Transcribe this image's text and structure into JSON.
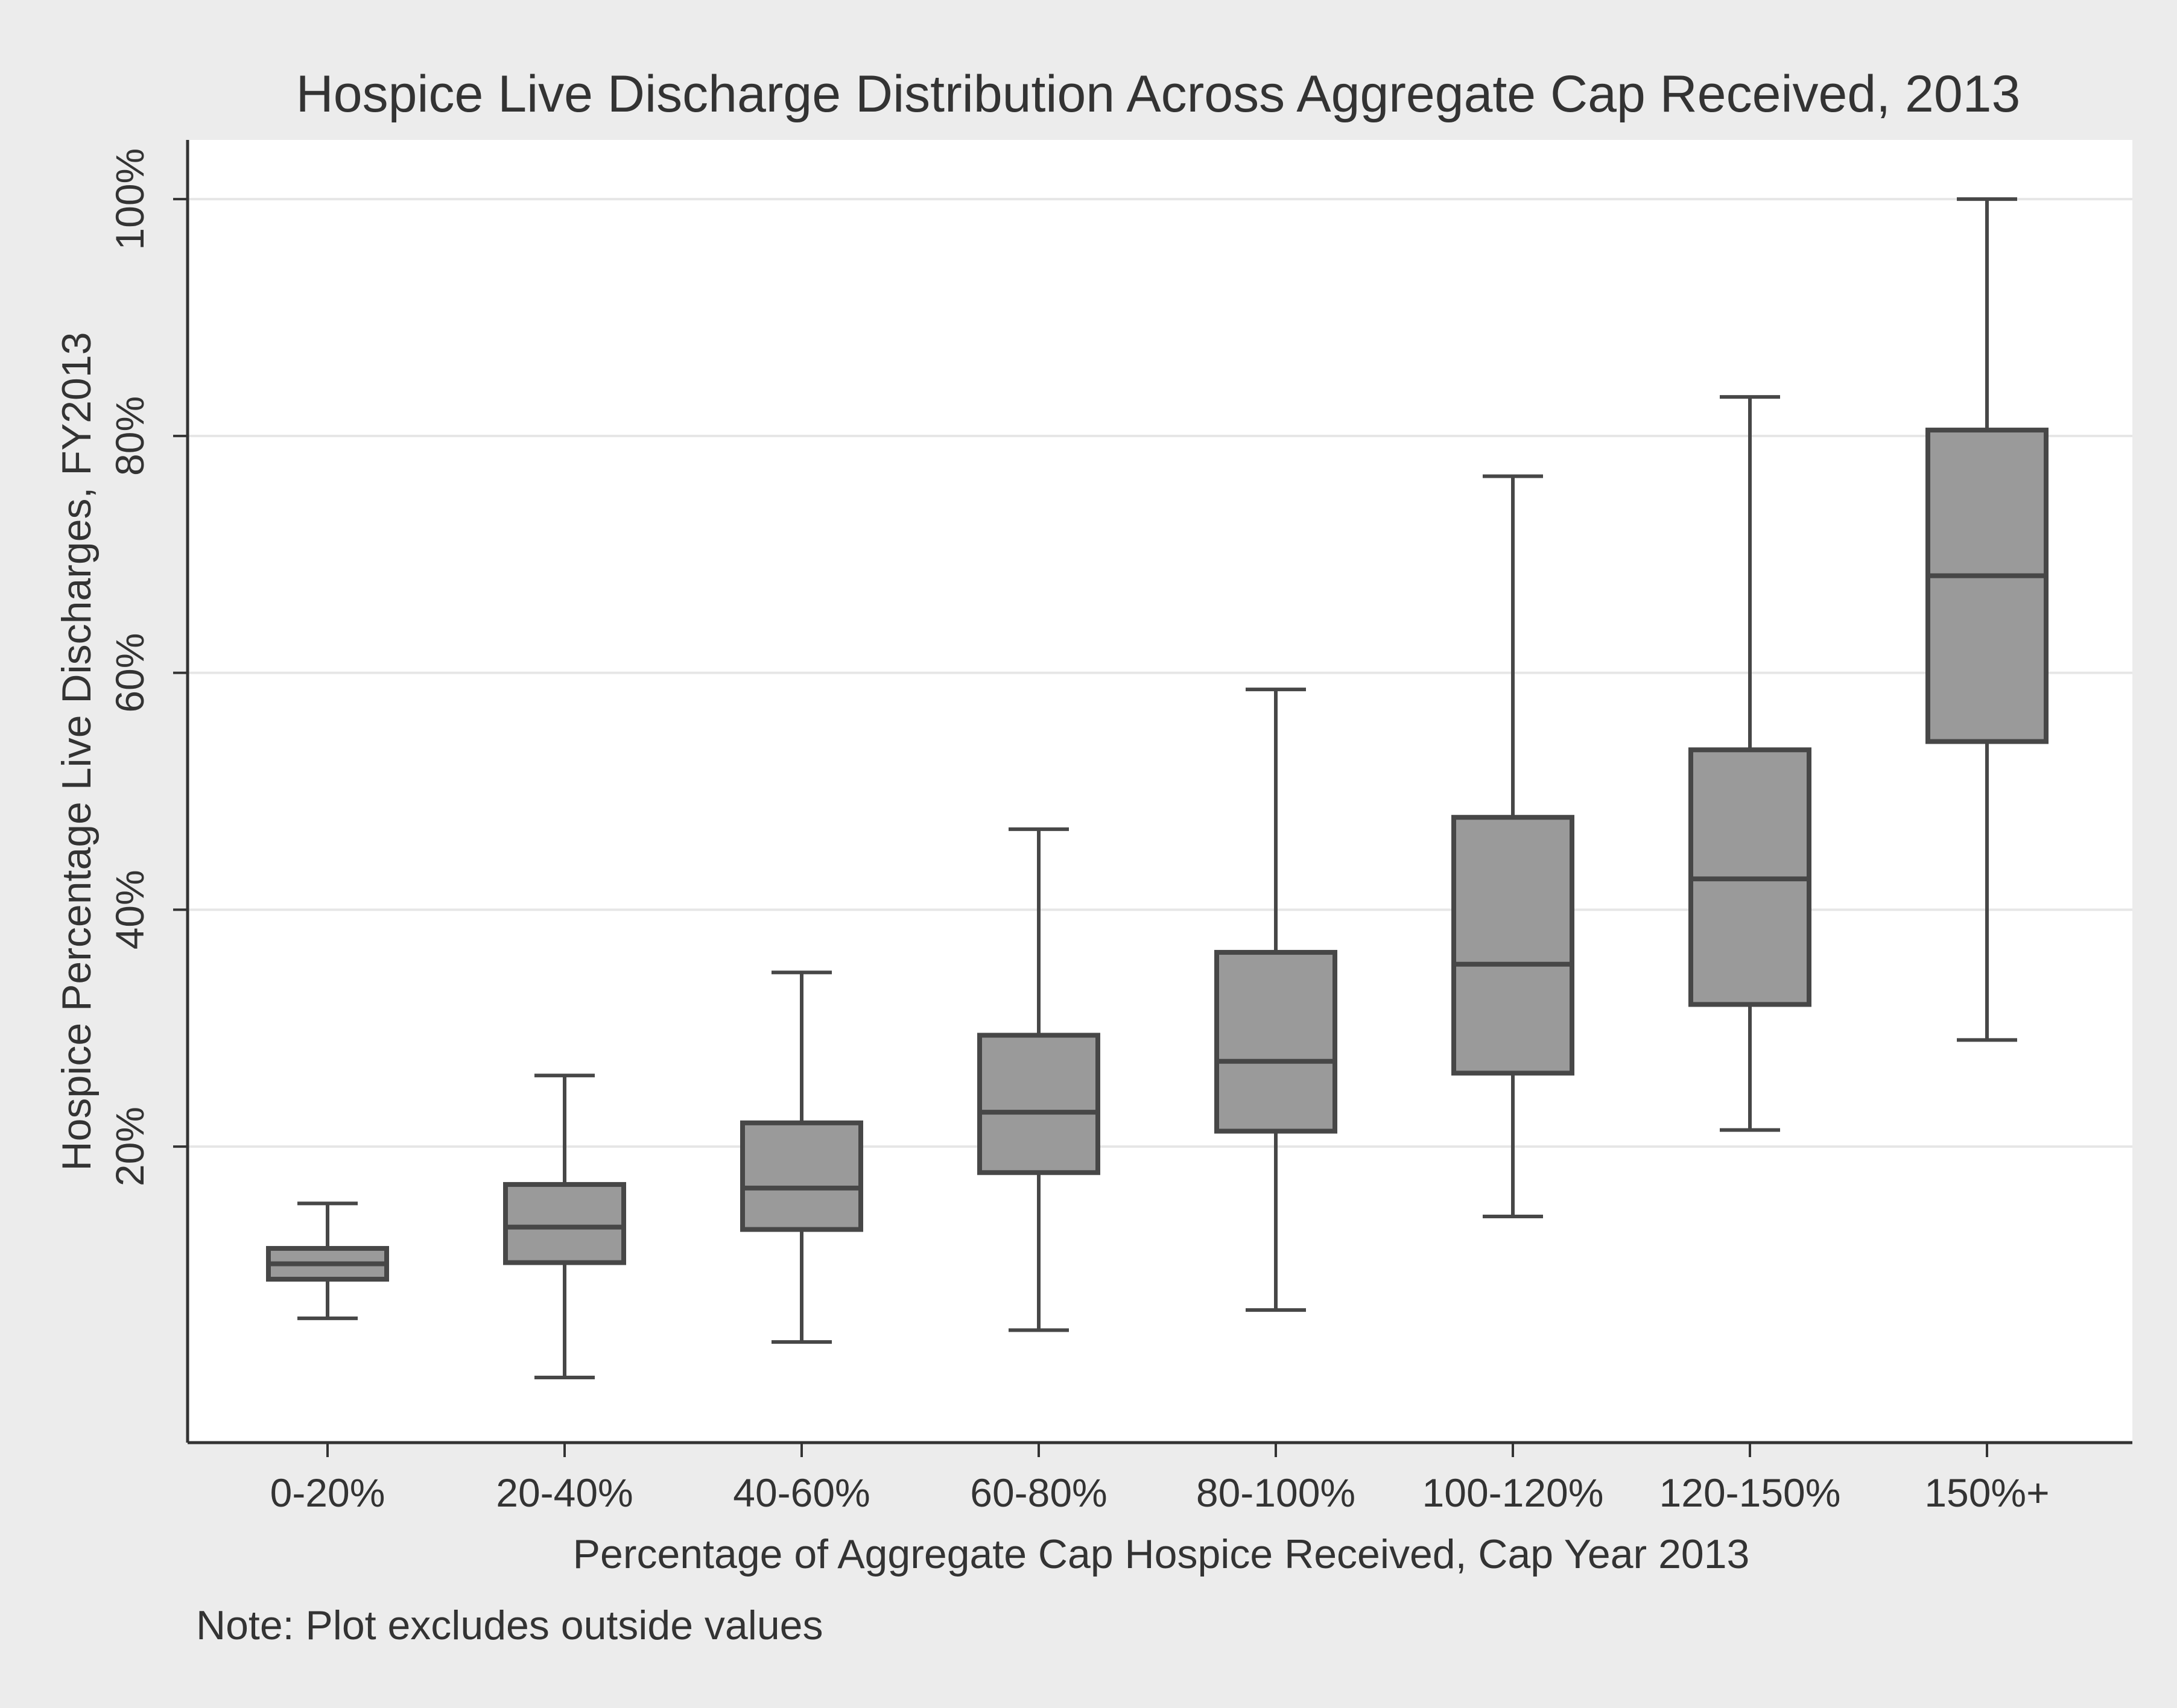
{
  "chart_data": {
    "type": "box",
    "title": "Hospice Live Discharge Distribution Across Aggregate Cap Received, 2013",
    "xlabel": "Percentage of Aggregate Cap Hospice Received, Cap Year 2013",
    "ylabel": "Hospice Percentage Live Discharges, FY2013",
    "note": "Note: Plot excludes outside values",
    "ylim": [
      -5,
      105
    ],
    "yticks": [
      {
        "value": 20,
        "label": "20%"
      },
      {
        "value": 40,
        "label": "40%"
      },
      {
        "value": 60,
        "label": "60%"
      },
      {
        "value": 80,
        "label": "80%"
      },
      {
        "value": 100,
        "label": "100%"
      }
    ],
    "grid": true,
    "categories": [
      "0-20%",
      "20-40%",
      "40-60%",
      "60-80%",
      "80-100%",
      "100-120%",
      "120-150%",
      "150%+"
    ],
    "boxes": [
      {
        "category": "0-20%",
        "whisker_low": 5.5,
        "q1": 8.8,
        "median": 10.1,
        "q3": 11.4,
        "whisker_high": 15.2
      },
      {
        "category": "20-40%",
        "whisker_low": 0.5,
        "q1": 10.2,
        "median": 13.2,
        "q3": 16.8,
        "whisker_high": 26.0
      },
      {
        "category": "40-60%",
        "whisker_low": 3.5,
        "q1": 13.0,
        "median": 16.5,
        "q3": 22.0,
        "whisker_high": 34.7
      },
      {
        "category": "60-80%",
        "whisker_low": 4.5,
        "q1": 17.8,
        "median": 22.9,
        "q3": 29.4,
        "whisker_high": 46.8
      },
      {
        "category": "80-100%",
        "whisker_low": 6.2,
        "q1": 21.3,
        "median": 27.2,
        "q3": 36.4,
        "whisker_high": 58.6
      },
      {
        "category": "100-120%",
        "whisker_low": 14.1,
        "q1": 26.2,
        "median": 35.4,
        "q3": 47.8,
        "whisker_high": 76.6
      },
      {
        "category": "120-150%",
        "whisker_low": 21.4,
        "q1": 32.0,
        "median": 42.6,
        "q3": 53.5,
        "whisker_high": 83.3
      },
      {
        "category": "150%+",
        "whisker_low": 29.0,
        "q1": 54.2,
        "median": 68.2,
        "q3": 80.5,
        "whisker_high": 100.0
      }
    ],
    "colors": {
      "box_fill": "#9a9a9a",
      "box_stroke": "#474747",
      "plot_background": "#ffffff",
      "page_background": "#ececec",
      "gridline": "#e6e6e6",
      "axis": "#333333"
    }
  }
}
